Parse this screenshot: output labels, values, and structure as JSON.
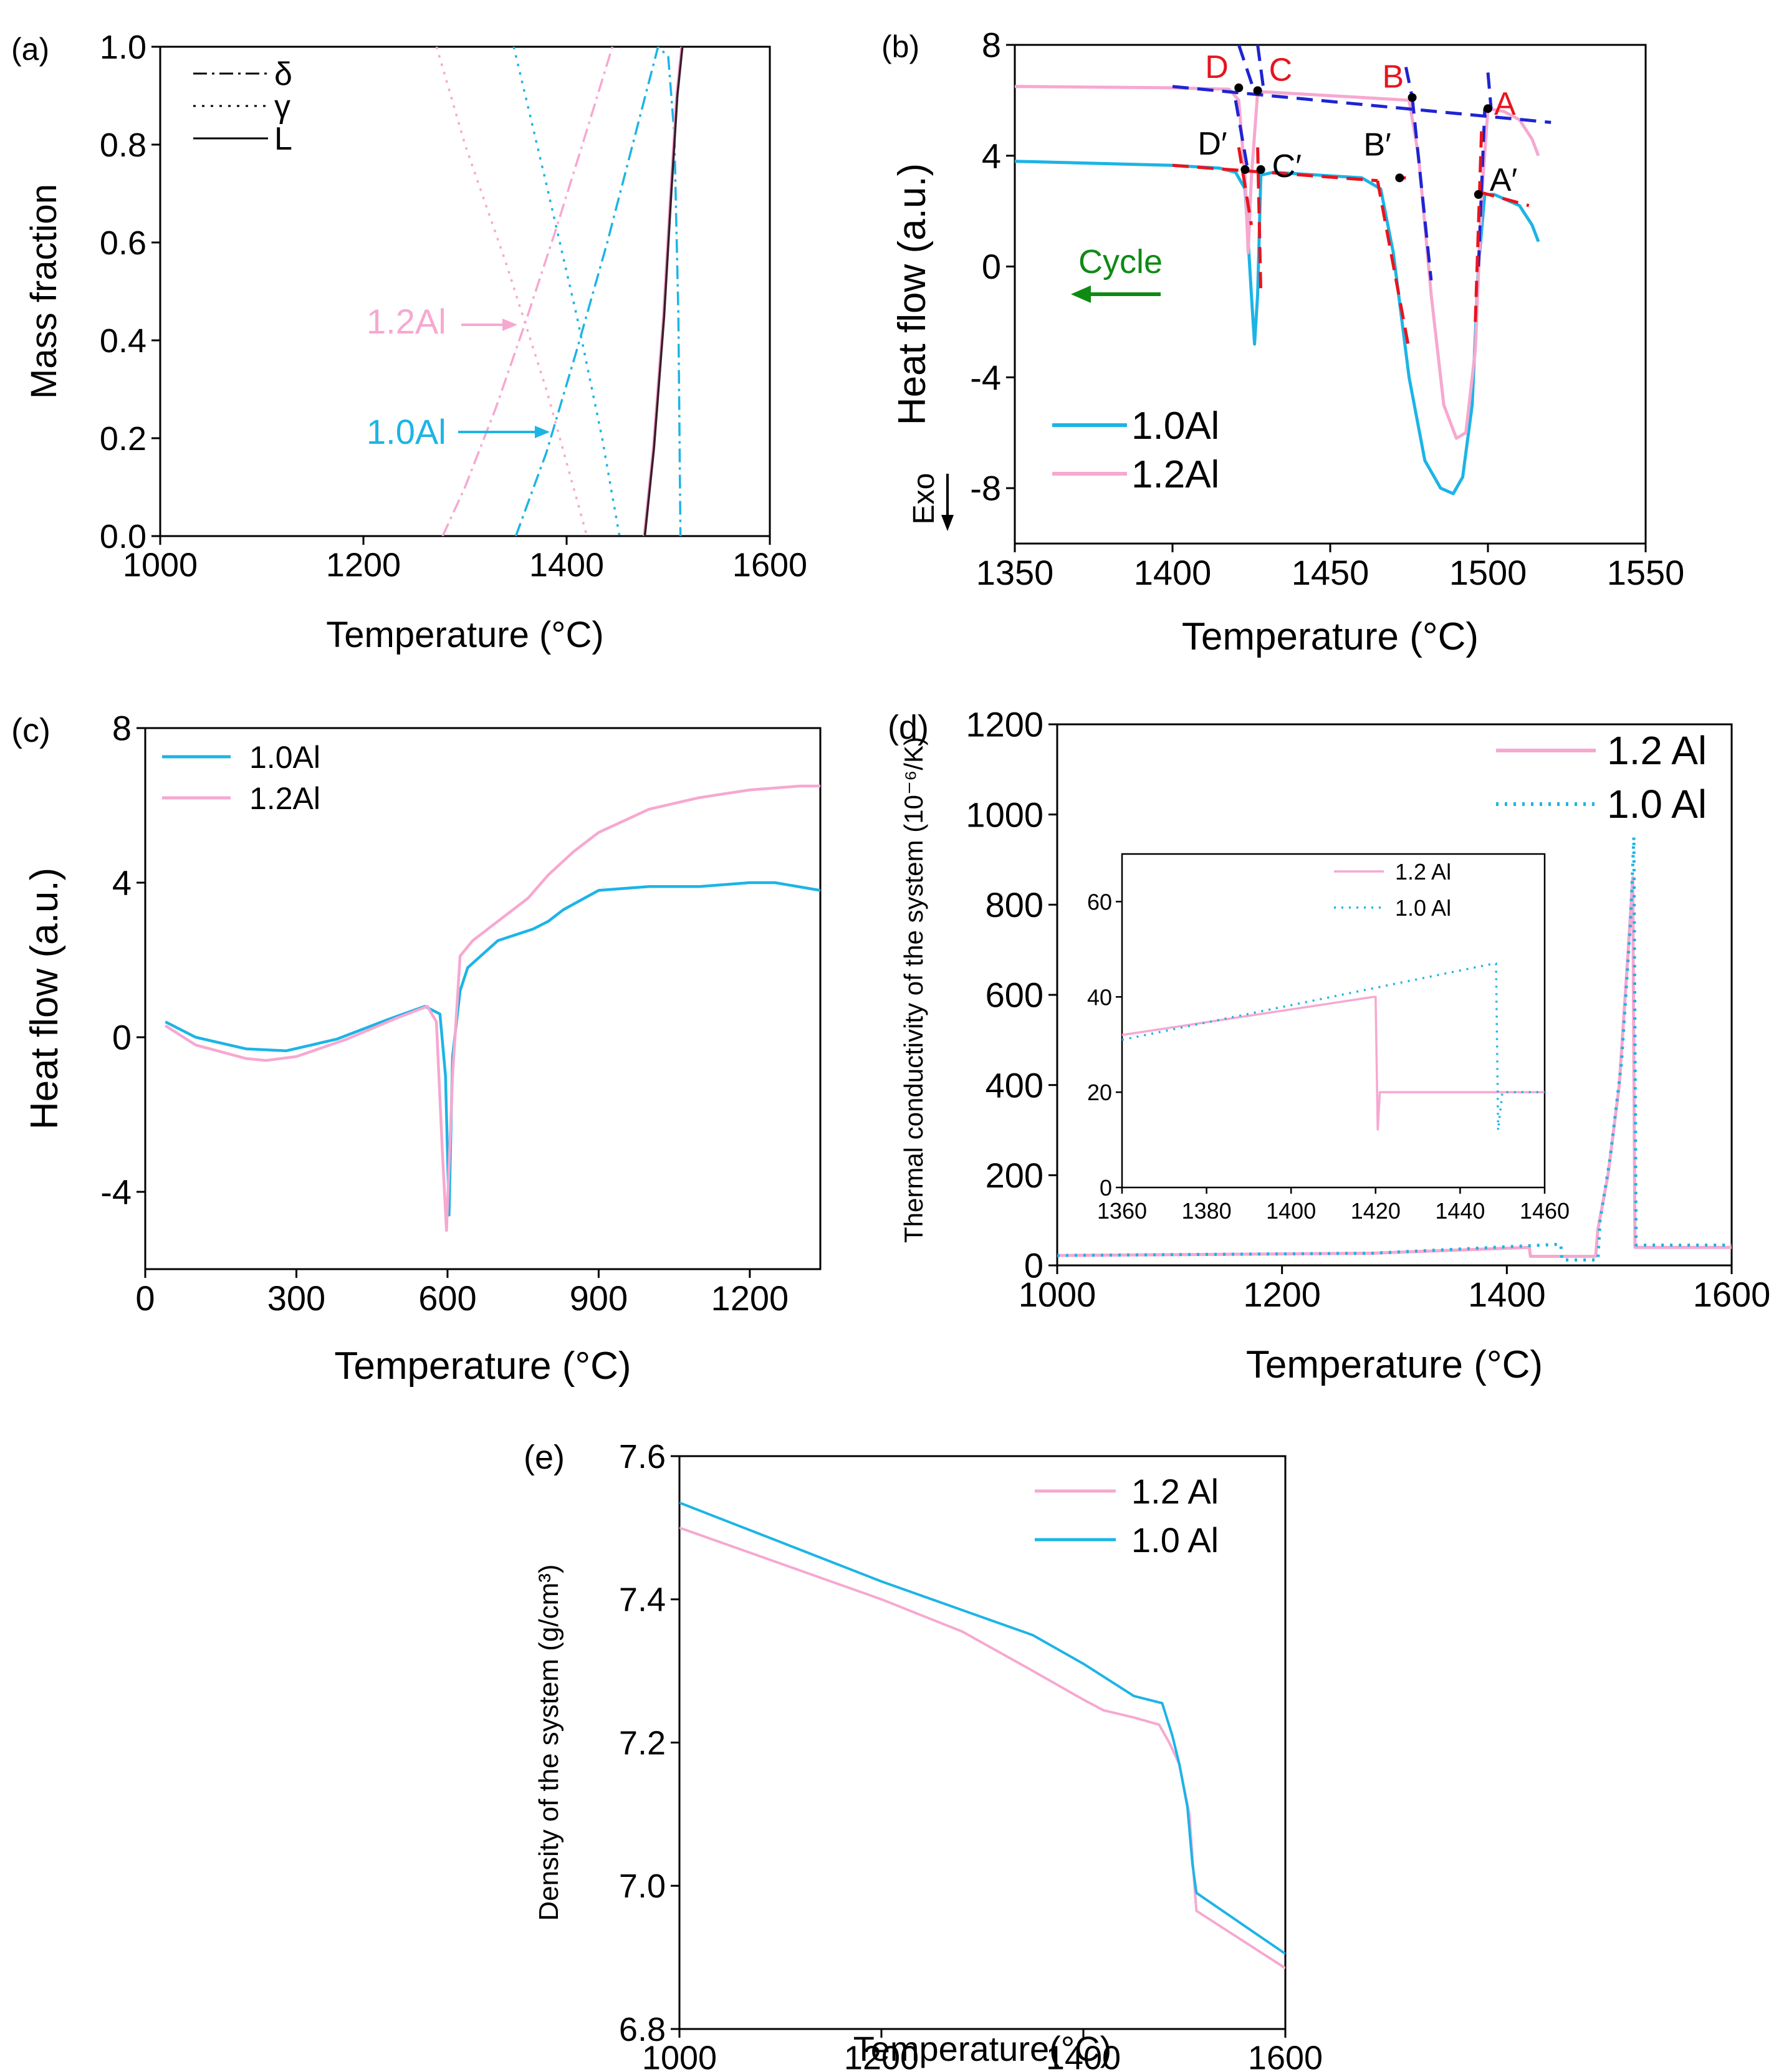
{
  "colors": {
    "blue": "#1cb4e6",
    "pink": "#f6a8d0",
    "dark": "#3a1c28",
    "red": "#e8141e",
    "navy": "#1e24d2",
    "green": "#0f8a14"
  },
  "chart_data": [
    {
      "id": "a",
      "tag": "(a)",
      "type": "line",
      "xlabel": "Temperature (°C)",
      "ylabel": "Mass fraction",
      "xlim": [
        1000,
        1600
      ],
      "ylim": [
        0,
        1
      ],
      "xticks": [
        1000,
        1200,
        1400,
        1600
      ],
      "yticks": [
        0.0,
        0.2,
        0.4,
        0.6,
        0.8,
        1.0
      ],
      "legend": [
        {
          "name": "δ",
          "style": "dashdot"
        },
        {
          "name": "γ",
          "style": "dotted"
        },
        {
          "name": "L",
          "style": "solid"
        }
      ],
      "annotations": [
        {
          "text": "1.2Al",
          "color": "pink"
        },
        {
          "text": "1.0Al",
          "color": "blue"
        }
      ],
      "series": [
        {
          "name": "δ 1.2Al",
          "color": "pink",
          "style": "dashdot",
          "x": [
            1278,
            1300,
            1330,
            1360,
            1390,
            1420,
            1445
          ],
          "y": [
            0.0,
            0.1,
            0.26,
            0.44,
            0.63,
            0.83,
            1.0
          ]
        },
        {
          "name": "γ 1.2Al",
          "color": "pink",
          "style": "dotted",
          "x": [
            1272,
            1300,
            1340,
            1380,
            1420
          ],
          "y": [
            1.0,
            0.8,
            0.56,
            0.3,
            0.0
          ]
        },
        {
          "name": "δ 1.0Al",
          "color": "blue",
          "style": "dashdot",
          "x": [
            1350,
            1380,
            1410,
            1440,
            1470,
            1490,
            1500,
            1506,
            1510,
            1512
          ],
          "y": [
            0.0,
            0.17,
            0.38,
            0.6,
            0.84,
            1.0,
            0.98,
            0.82,
            0.45,
            0.0
          ]
        },
        {
          "name": "γ 1.0Al",
          "color": "blue",
          "style": "dotted",
          "x": [
            1348,
            1380,
            1410,
            1435,
            1452
          ],
          "y": [
            1.0,
            0.72,
            0.45,
            0.2,
            0.0
          ]
        },
        {
          "name": "L 1.2Al",
          "color": "pink",
          "style": "solid",
          "x": [
            1476,
            1485,
            1495,
            1502,
            1508,
            1513
          ],
          "y": [
            0.0,
            0.18,
            0.45,
            0.7,
            0.9,
            1.0
          ]
        },
        {
          "name": "L 1.0Al",
          "color": "dark",
          "style": "solid",
          "x": [
            1477,
            1486,
            1496,
            1503,
            1509,
            1514
          ],
          "y": [
            0.0,
            0.18,
            0.45,
            0.7,
            0.9,
            1.0
          ]
        }
      ]
    },
    {
      "id": "b",
      "tag": "(b)",
      "type": "line",
      "xlabel": "Temperature (°C)",
      "ylabel": "Heat flow (a.u.)",
      "xlim": [
        1350,
        1550
      ],
      "ylim": [
        -10,
        8
      ],
      "xticks": [
        1350,
        1400,
        1450,
        1500,
        1550
      ],
      "yticks": [
        -8,
        -4,
        0,
        4,
        8
      ],
      "legend": [
        {
          "name": "1.0Al",
          "color": "blue"
        },
        {
          "name": "1.2Al",
          "color": "pink"
        }
      ],
      "text": {
        "cycle": "Cycle",
        "exo": "Exo"
      },
      "series": [
        {
          "name": "1.0Al",
          "color": "blue",
          "x": [
            1350,
            1400,
            1415,
            1420,
            1423,
            1425,
            1426,
            1427,
            1428,
            1432,
            1460,
            1466,
            1470,
            1475,
            1480,
            1485,
            1489,
            1492,
            1495,
            1497,
            1499,
            1502,
            1510,
            1514,
            1516
          ],
          "y": [
            3.8,
            3.65,
            3.55,
            3.4,
            2.8,
            -1.0,
            -2.8,
            -1.0,
            3.3,
            3.4,
            3.2,
            2.8,
            0.5,
            -4.0,
            -7.0,
            -8.0,
            -8.2,
            -7.6,
            -5.0,
            0.0,
            2.6,
            2.6,
            2.2,
            1.5,
            0.9
          ]
        },
        {
          "name": "1.2Al",
          "color": "pink",
          "x": [
            1350,
            1400,
            1418,
            1421,
            1423,
            1424,
            1425,
            1427,
            1430,
            1460,
            1475,
            1478,
            1482,
            1486,
            1490,
            1493,
            1496,
            1498,
            1500,
            1505,
            1510,
            1514,
            1516
          ],
          "y": [
            6.5,
            6.45,
            6.4,
            6.0,
            3.2,
            0.5,
            3.2,
            6.3,
            6.3,
            6.1,
            6.0,
            4.0,
            -1.0,
            -5.0,
            -6.2,
            -6.0,
            -3.0,
            2.5,
            5.7,
            5.6,
            5.3,
            4.6,
            4.0
          ]
        }
      ],
      "tangent_lines": [
        {
          "color": "navy",
          "x": [
            1400,
            1520
          ],
          "y": [
            6.5,
            5.2
          ]
        },
        {
          "color": "navy",
          "x": [
            1421,
            1426
          ],
          "y": [
            8.0,
            6.3
          ]
        },
        {
          "color": "navy",
          "x": [
            1427,
            1429
          ],
          "y": [
            8.0,
            6.3
          ]
        },
        {
          "color": "navy",
          "x": [
            1474,
            1476
          ],
          "y": [
            7.2,
            6.1
          ]
        },
        {
          "color": "navy",
          "x": [
            1500,
            1501
          ],
          "y": [
            7.0,
            5.7
          ]
        },
        {
          "color": "navy",
          "x": [
            1476,
            1482
          ],
          "y": [
            6.1,
            -0.5
          ]
        },
        {
          "color": "navy",
          "x": [
            1420,
            1424
          ],
          "y": [
            6.0,
            3.4
          ]
        },
        {
          "color": "navy",
          "x": [
            1497,
            1499
          ],
          "y": [
            0.0,
            5.7
          ]
        },
        {
          "color": "red",
          "x": [
            1400,
            1465
          ],
          "y": [
            3.65,
            3.1
          ]
        },
        {
          "color": "red",
          "x": [
            1421,
            1425
          ],
          "y": [
            4.3,
            1.5
          ]
        },
        {
          "color": "red",
          "x": [
            1427,
            1428
          ],
          "y": [
            4.3,
            -1.0
          ]
        },
        {
          "color": "red",
          "x": [
            1465,
            1475
          ],
          "y": [
            3.1,
            -3.0
          ]
        },
        {
          "color": "red",
          "x": [
            1471,
            1474
          ],
          "y": [
            3.2,
            3.2
          ]
        },
        {
          "color": "red",
          "x": [
            1496,
            1498
          ],
          "y": [
            -2.0,
            5.0
          ]
        },
        {
          "color": "red",
          "x": [
            1497,
            1513
          ],
          "y": [
            2.7,
            2.2
          ]
        }
      ],
      "points": [
        {
          "label": "D",
          "color": "red",
          "x": 1421,
          "y": 6.45
        },
        {
          "label": "C",
          "color": "red",
          "x": 1427,
          "y": 6.35
        },
        {
          "label": "B",
          "color": "red",
          "x": 1476,
          "y": 6.1
        },
        {
          "label": "A",
          "color": "red",
          "x": 1500,
          "y": 5.7
        },
        {
          "label": "D′",
          "color": "black",
          "x": 1423,
          "y": 3.5
        },
        {
          "label": "C′",
          "color": "black",
          "x": 1428,
          "y": 3.5
        },
        {
          "label": "B′",
          "color": "black",
          "x": 1472,
          "y": 3.2
        },
        {
          "label": "A′",
          "color": "black",
          "x": 1497,
          "y": 2.6
        }
      ]
    },
    {
      "id": "c",
      "tag": "(c)",
      "type": "line",
      "xlabel": "Temperature (°C)",
      "ylabel": "Heat flow (a.u.)",
      "xlim": [
        0,
        1340
      ],
      "ylim": [
        -6,
        8
      ],
      "xticks": [
        0,
        300,
        600,
        900,
        1200
      ],
      "yticks": [
        -4,
        0,
        4,
        8
      ],
      "legend": [
        {
          "name": "1.0Al",
          "color": "blue"
        },
        {
          "name": "1.2Al",
          "color": "pink"
        }
      ],
      "series": [
        {
          "name": "1.0Al",
          "color": "blue",
          "x": [
            40,
            100,
            200,
            280,
            380,
            480,
            555,
            585,
            596,
            603,
            610,
            625,
            640,
            700,
            770,
            800,
            830,
            900,
            1000,
            1100,
            1200,
            1250,
            1340
          ],
          "y": [
            0.4,
            0.0,
            -0.3,
            -0.35,
            -0.05,
            0.45,
            0.8,
            0.6,
            -1.0,
            -4.6,
            -0.5,
            1.2,
            1.8,
            2.5,
            2.8,
            3.0,
            3.3,
            3.8,
            3.9,
            3.9,
            4.0,
            4.0,
            3.8
          ]
        },
        {
          "name": "1.2Al",
          "color": "pink",
          "x": [
            40,
            100,
            200,
            240,
            300,
            400,
            500,
            560,
            578,
            590,
            598,
            610,
            625,
            650,
            700,
            760,
            800,
            850,
            900,
            1000,
            1100,
            1200,
            1300,
            1340
          ],
          "y": [
            0.3,
            -0.2,
            -0.55,
            -0.6,
            -0.5,
            -0.05,
            0.5,
            0.8,
            0.4,
            -3.0,
            -5.0,
            -1.0,
            2.1,
            2.5,
            3.0,
            3.6,
            4.2,
            4.8,
            5.3,
            5.9,
            6.2,
            6.4,
            6.5,
            6.5
          ]
        }
      ]
    },
    {
      "id": "d",
      "tag": "(d)",
      "type": "line",
      "xlabel": "Temperature (°C)",
      "ylabel": "Thermal conductivity of the system (10⁻⁶/K)",
      "xlim": [
        1000,
        1600
      ],
      "ylim": [
        0,
        1200
      ],
      "xticks": [
        1000,
        1200,
        1400,
        1600
      ],
      "yticks": [
        0,
        200,
        400,
        600,
        800,
        1000,
        1200
      ],
      "legend": [
        {
          "name": "1.2 Al",
          "color": "pink",
          "style": "solid"
        },
        {
          "name": "1.0 Al",
          "color": "blue",
          "style": "dotted"
        }
      ],
      "series": [
        {
          "name": "1.2 Al",
          "color": "pink",
          "style": "solid",
          "x": [
            1000,
            1280,
            1420,
            1421,
            1479,
            1481,
            1490,
            1500,
            1508,
            1512,
            1514,
            1600
          ],
          "y": [
            22,
            27,
            40,
            20,
            20,
            80,
            200,
            400,
            700,
            860,
            40,
            40
          ]
        },
        {
          "name": "1.0 Al",
          "color": "blue",
          "style": "dotted",
          "x": [
            1000,
            1280,
            1448,
            1449,
            1481,
            1483,
            1492,
            1502,
            1510,
            1513,
            1515,
            1600
          ],
          "y": [
            22,
            27,
            47,
            12,
            12,
            100,
            240,
            450,
            760,
            950,
            45,
            45
          ]
        }
      ],
      "inset": {
        "xlim": [
          1360,
          1460
        ],
        "ylim": [
          0,
          70
        ],
        "xticks": [
          1360,
          1380,
          1400,
          1420,
          1440,
          1460
        ],
        "yticks": [
          0,
          20,
          40,
          60
        ],
        "legend": [
          {
            "name": "1.2 Al",
            "color": "pink",
            "style": "solid"
          },
          {
            "name": "1.0 Al",
            "color": "blue",
            "style": "dotted"
          }
        ],
        "series": [
          {
            "name": "1.2 Al",
            "color": "pink",
            "style": "solid",
            "x": [
              1360,
              1419.5,
              1420,
              1420.5,
              1421,
              1460
            ],
            "y": [
              32,
              40,
              40,
              12,
              20,
              20
            ]
          },
          {
            "name": "1.0 Al",
            "color": "blue",
            "style": "dotted",
            "x": [
              1360,
              1448,
              1448.5,
              1449,
              1450,
              1460
            ],
            "y": [
              31,
              47,
              47,
              12,
              20,
              20
            ]
          }
        ]
      }
    },
    {
      "id": "e",
      "tag": "(e)",
      "type": "line",
      "xlabel": "Temperature(°C)",
      "ylabel": "Density of the system (g/cm³)",
      "xlim": [
        1000,
        1600
      ],
      "ylim": [
        6.8,
        7.6
      ],
      "xticks": [
        1000,
        1200,
        1400,
        1600
      ],
      "yticks": [
        6.8,
        7.0,
        7.2,
        7.4,
        7.6
      ],
      "legend": [
        {
          "name": "1.2 Al",
          "color": "pink"
        },
        {
          "name": "1.0 Al",
          "color": "blue"
        }
      ],
      "series": [
        {
          "name": "1.2 Al",
          "color": "pink",
          "x": [
            1000,
            1100,
            1200,
            1280,
            1350,
            1400,
            1420,
            1450,
            1475,
            1485,
            1495,
            1505,
            1510,
            1512,
            1600
          ],
          "y": [
            7.5,
            7.45,
            7.4,
            7.355,
            7.3,
            7.26,
            7.245,
            7.235,
            7.225,
            7.2,
            7.17,
            7.1,
            7.0,
            6.965,
            6.885
          ]
        },
        {
          "name": "1.0 Al",
          "color": "blue",
          "x": [
            1000,
            1100,
            1200,
            1300,
            1350,
            1400,
            1450,
            1478,
            1488,
            1495,
            1503,
            1508,
            1512,
            1600
          ],
          "y": [
            7.535,
            7.48,
            7.425,
            7.375,
            7.35,
            7.31,
            7.265,
            7.255,
            7.21,
            7.17,
            7.11,
            7.03,
            6.99,
            6.905
          ]
        }
      ]
    }
  ]
}
